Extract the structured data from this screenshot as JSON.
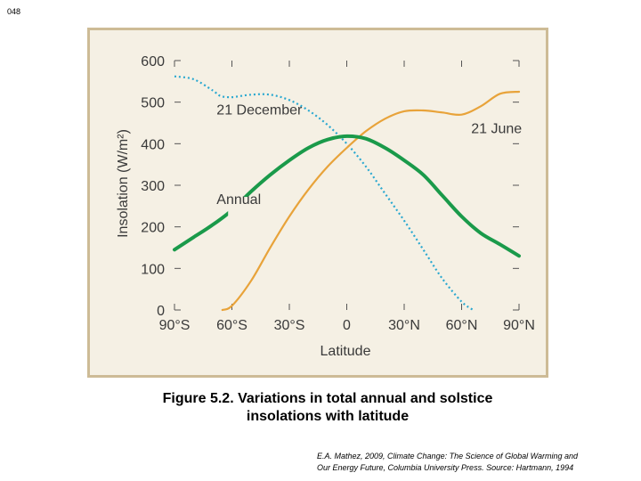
{
  "slide": {
    "number": "048"
  },
  "caption": {
    "line1": "Figure 5.2.  Variations in total annual and solstice",
    "line2": "insolations with latitude"
  },
  "source": {
    "line1": "E.A. Mathez, 2009, Climate Change: The Science of Global Warming and",
    "line2": "Our Energy Future, Columbia University Press.  Source: Hartmann, 1994"
  },
  "colors": {
    "panel_background": "#f5f0e4",
    "panel_border": "#cdbb96",
    "annual": "#1a9a4a",
    "june": "#e8a33a",
    "december": "#2aa8d0"
  },
  "chart_data": {
    "type": "line",
    "xlabel": "Latitude",
    "ylabel": "Insolation (W/m²)",
    "ylim": [
      0,
      600
    ],
    "xlim": [
      -90,
      90
    ],
    "x_ticks": [
      {
        "value": -90,
        "label": "90°S"
      },
      {
        "value": -60,
        "label": "60°S"
      },
      {
        "value": -30,
        "label": "30°S"
      },
      {
        "value": 0,
        "label": "0"
      },
      {
        "value": 30,
        "label": "30°N"
      },
      {
        "value": 60,
        "label": "60°N"
      },
      {
        "value": 90,
        "label": "90°N"
      }
    ],
    "y_ticks": [
      0,
      100,
      200,
      300,
      400,
      500,
      600
    ],
    "series": [
      {
        "name": "Annual",
        "style": "solid",
        "color": "#1a9a4a",
        "x": [
          -90,
          -80,
          -70,
          -60,
          -50,
          -40,
          -30,
          -20,
          -10,
          0,
          10,
          20,
          30,
          40,
          50,
          60,
          70,
          80,
          90
        ],
        "y": [
          145,
          175,
          205,
          240,
          285,
          325,
          360,
          390,
          410,
          418,
          412,
          390,
          360,
          325,
          275,
          225,
          185,
          158,
          130
        ]
      },
      {
        "name": "21 December",
        "style": "dotted",
        "color": "#2aa8d0",
        "x": [
          -90,
          -80,
          -70,
          -66,
          -60,
          -50,
          -40,
          -30,
          -20,
          -10,
          0,
          10,
          20,
          30,
          40,
          50,
          60,
          66
        ],
        "y": [
          562,
          555,
          528,
          515,
          512,
          518,
          518,
          505,
          480,
          445,
          400,
          345,
          280,
          215,
          145,
          75,
          20,
          0
        ]
      },
      {
        "name": "21 June",
        "style": "solid",
        "color": "#e8a33a",
        "x": [
          -65,
          -60,
          -50,
          -40,
          -30,
          -20,
          -10,
          0,
          10,
          20,
          30,
          40,
          50,
          60,
          70,
          80,
          90
        ],
        "y": [
          0,
          10,
          70,
          150,
          225,
          290,
          345,
          390,
          430,
          460,
          478,
          480,
          475,
          470,
          490,
          520,
          525
        ]
      }
    ],
    "annotations": [
      {
        "text": "21 December",
        "x": -68,
        "y": 470
      },
      {
        "text": "21 June",
        "x": 65,
        "y": 425
      },
      {
        "text": "Annual",
        "x": -68,
        "y": 255
      }
    ],
    "grid": false,
    "legend": "none"
  }
}
